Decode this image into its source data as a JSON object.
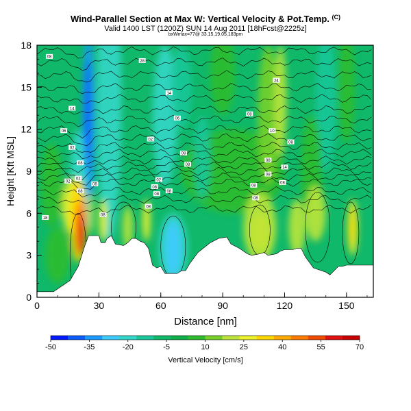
{
  "header": {
    "title": "Wind-Parallel Section at Max W: Vertical Velocity & Pot.Temp.",
    "copyright": "(C)",
    "subtitle": "Valid 1400 LST (1200Z) SUN 14 Aug 2011 [18hFcst@2225z]",
    "location": "bxWmax=77@ 33.15,19.05,183pm"
  },
  "chart_data": {
    "type": "heatmap",
    "title": "Wind-Parallel Section at Max W: Vertical Velocity & Pot.Temp.",
    "xlabel": "Distance [nm]",
    "ylabel": "Height [Kft MSL]",
    "xlim": [
      0,
      163
    ],
    "ylim": [
      0,
      18
    ],
    "x_ticks": [
      "0",
      "30",
      "60",
      "90",
      "120",
      "150"
    ],
    "y_ticks": [
      "0",
      "3",
      "6",
      "9",
      "12",
      "15",
      "18"
    ],
    "grid": false,
    "colorbar": {
      "label": "Vertical Velocity [cm/s]",
      "tick_labels": [
        "-50",
        "-35",
        "-20",
        "-5",
        "10",
        "25",
        "40",
        "55",
        "70"
      ],
      "colors": [
        "#0019ff",
        "#0a5cff",
        "#1a9aff",
        "#3ecbff",
        "#33d6c8",
        "#19c79a",
        "#10b86a",
        "#0fb049",
        "#2ebc2e",
        "#77d02a",
        "#bde53c",
        "#eef22c",
        "#ffd800",
        "#ffab00",
        "#ff7a00",
        "#f04a00",
        "#e01010",
        "#c80000"
      ]
    },
    "terrain_kft": [
      [
        0,
        0.4
      ],
      [
        8,
        0.4
      ],
      [
        16,
        1.2
      ],
      [
        20,
        2.2
      ],
      [
        23,
        3.6
      ],
      [
        25,
        4.4
      ],
      [
        28,
        4.4
      ],
      [
        30,
        4.4
      ],
      [
        31,
        3.9
      ],
      [
        33,
        3.9
      ],
      [
        34,
        4.2
      ],
      [
        36,
        4.4
      ],
      [
        38,
        3.8
      ],
      [
        42,
        3.7
      ],
      [
        44,
        3.9
      ],
      [
        46,
        4.2
      ],
      [
        48,
        4.2
      ],
      [
        50,
        4.0
      ],
      [
        52,
        3.9
      ],
      [
        54,
        3.5
      ],
      [
        56,
        2.3
      ],
      [
        58,
        2.1
      ],
      [
        60,
        2.2
      ],
      [
        62,
        1.7
      ],
      [
        68,
        1.7
      ],
      [
        70,
        1.9
      ],
      [
        72,
        1.9
      ],
      [
        74,
        2.4
      ],
      [
        78,
        3.2
      ],
      [
        84,
        3.9
      ],
      [
        88,
        4.2
      ],
      [
        92,
        4.3
      ],
      [
        94,
        3.8
      ],
      [
        98,
        3.5
      ],
      [
        102,
        3.1
      ],
      [
        104,
        3.0
      ],
      [
        108,
        3.1
      ],
      [
        110,
        3.2
      ],
      [
        112,
        3.0
      ],
      [
        116,
        3.1
      ],
      [
        118,
        3.3
      ],
      [
        120,
        3.4
      ],
      [
        124,
        3.4
      ],
      [
        126,
        3.5
      ],
      [
        128,
        3.5
      ],
      [
        130,
        2.9
      ],
      [
        134,
        2.1
      ],
      [
        138,
        1.9
      ],
      [
        140,
        1.8
      ],
      [
        142,
        1.6
      ],
      [
        144,
        1.9
      ],
      [
        146,
        2.2
      ],
      [
        148,
        2.2
      ],
      [
        150,
        2.3
      ],
      [
        163,
        2.3
      ]
    ],
    "potential_temperature_contour_labels": [
      {
        "x": 6,
        "y": 17.2,
        "label": "08"
      },
      {
        "x": 51,
        "y": 16.9,
        "label": "28"
      },
      {
        "x": 116,
        "y": 15.5,
        "label": "24"
      },
      {
        "x": 64,
        "y": 14.6,
        "label": "14"
      },
      {
        "x": 17,
        "y": 13.5,
        "label": "14"
      },
      {
        "x": 68,
        "y": 12.8,
        "label": "06"
      },
      {
        "x": 103,
        "y": 13.1,
        "label": "08"
      },
      {
        "x": 13,
        "y": 11.9,
        "label": "06"
      },
      {
        "x": 114,
        "y": 11.9,
        "label": "10"
      },
      {
        "x": 55,
        "y": 11.3,
        "label": "02"
      },
      {
        "x": 123,
        "y": 11.1,
        "label": "08"
      },
      {
        "x": 17,
        "y": 10.7,
        "label": "02"
      },
      {
        "x": 71,
        "y": 10.3,
        "label": "08"
      },
      {
        "x": 112,
        "y": 9.8,
        "label": "08"
      },
      {
        "x": 21,
        "y": 9.6,
        "label": "08"
      },
      {
        "x": 73,
        "y": 9.5,
        "label": "08"
      },
      {
        "x": 120,
        "y": 9.3,
        "label": "14"
      },
      {
        "x": 15,
        "y": 8.3,
        "label": "02"
      },
      {
        "x": 59,
        "y": 8.4,
        "label": "02"
      },
      {
        "x": 20,
        "y": 8.5,
        "label": "02"
      },
      {
        "x": 112,
        "y": 8.8,
        "label": "08"
      },
      {
        "x": 28,
        "y": 8.1,
        "label": "08"
      },
      {
        "x": 57,
        "y": 7.9,
        "label": "08"
      },
      {
        "x": 105,
        "y": 8.0,
        "label": "08"
      },
      {
        "x": 119,
        "y": 8.2,
        "label": "08"
      },
      {
        "x": 21,
        "y": 7.6,
        "label": "08"
      },
      {
        "x": 64,
        "y": 7.6,
        "label": "08"
      },
      {
        "x": 58,
        "y": 7.4,
        "label": "08"
      },
      {
        "x": 106,
        "y": 7.1,
        "label": "08"
      },
      {
        "x": 54,
        "y": 6.5,
        "label": "08"
      },
      {
        "x": 32,
        "y": 5.9,
        "label": "08"
      },
      {
        "x": 4,
        "y": 5.7,
        "label": "18"
      }
    ]
  }
}
